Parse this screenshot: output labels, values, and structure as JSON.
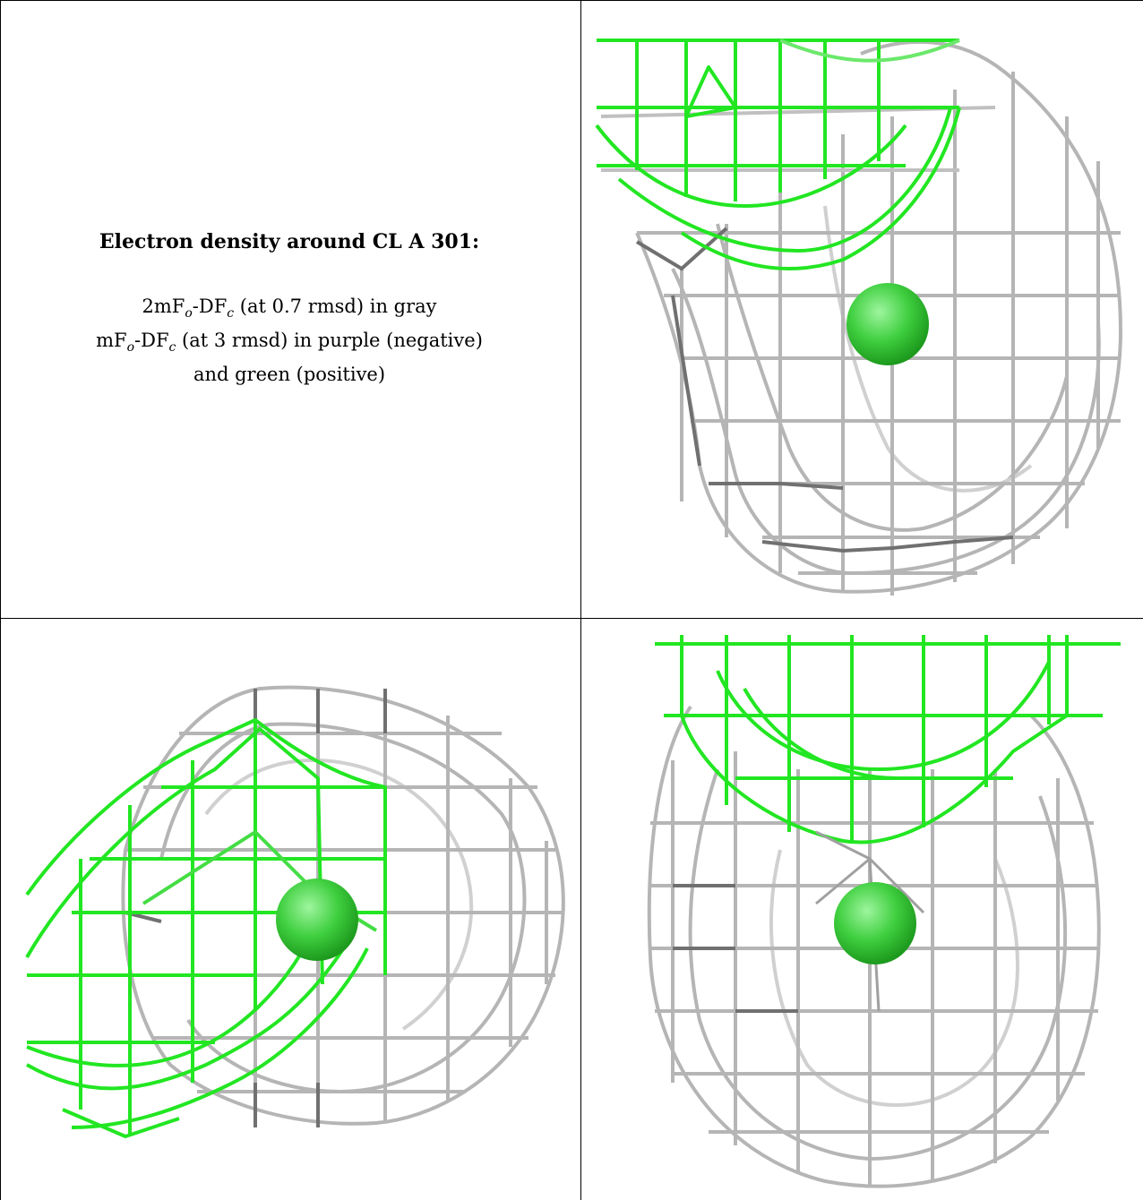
{
  "caption": {
    "title": "Electron density around CL A 301:",
    "line1_a": "2mF",
    "line1_o": "o",
    "line1_b": "-DF",
    "line1_c": "c",
    "line1_rest": " (at 0.7 rmsd) in gray",
    "line2_a": "mF",
    "line2_o": "o",
    "line2_b": "-DF",
    "line2_c": "c",
    "line2_rest": " (at 3 rmsd) in purple (negative)",
    "line3": "and green (positive)"
  },
  "colors": {
    "mesh_gray": "#b5b5b5",
    "mesh_dark": "#707070",
    "mesh_green": "#22e622",
    "atom_green": "#3fcf3f",
    "border": "#000000"
  }
}
